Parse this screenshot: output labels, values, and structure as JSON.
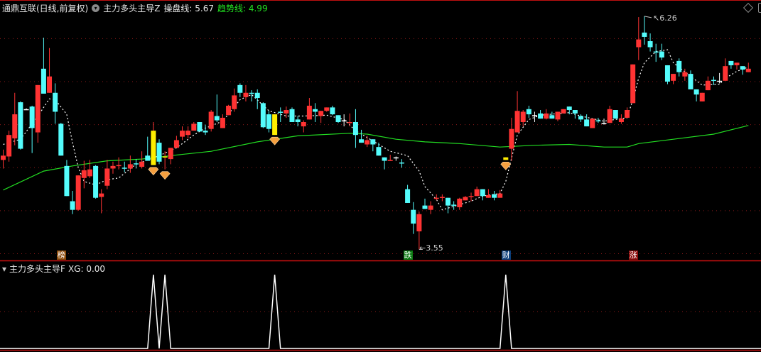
{
  "header": {
    "stock": "通鼎互联(日线,前复权)",
    "indicator": "主力多头主导Z",
    "line1_label": "操盘线: 5.67",
    "line2_label": "趋势线: 4.99"
  },
  "sub_header": {
    "indicator": "主力多头主导F",
    "value_label": "XG: 0.00"
  },
  "markers": [
    {
      "text": "榜",
      "index": 10,
      "color": "#8b4a0a"
    },
    {
      "text": "跌",
      "index": 70,
      "color": "#0b7a12"
    },
    {
      "text": "财",
      "index": 87,
      "color": "#0b3f7a"
    },
    {
      "text": "涨",
      "index": 109,
      "color": "#8b0c0c"
    }
  ],
  "colors": {
    "up": "#ff3333",
    "down": "#54fcfc",
    "flat": "#ffffff",
    "signal": "#ffee00",
    "trend": "#22dd22",
    "ma": "#ffffff",
    "grid": "#8b1a1a",
    "diamond": "#f5a040"
  },
  "chart_data": [
    {
      "type": "candlestick",
      "ylim": [
        3.43,
        6.3
      ],
      "grid": true,
      "gridlines": [
        3.5,
        4.0,
        4.5,
        5.0,
        5.5,
        6.0
      ],
      "high_label": {
        "index": 111,
        "value": "6.26"
      },
      "low_label": {
        "index": 72,
        "value": "3.55"
      },
      "signal_indices": [
        26,
        28,
        47,
        87
      ],
      "ohlc": [
        [
          4.59,
          4.71,
          4.49,
          4.64
        ],
        [
          4.63,
          4.93,
          4.57,
          4.88
        ],
        [
          4.84,
          5.37,
          4.76,
          5.12
        ],
        [
          5.26,
          5.27,
          4.71,
          4.72
        ],
        [
          5.18,
          5.19,
          5.17,
          5.18
        ],
        [
          5.21,
          5.22,
          4.67,
          4.96
        ],
        [
          4.91,
          5.46,
          4.79,
          5.46
        ],
        [
          5.65,
          6.01,
          5.36,
          5.36
        ],
        [
          5.37,
          5.89,
          5.37,
          5.56
        ],
        [
          5.37,
          5.48,
          5.01,
          5.15
        ],
        [
          5.01,
          5.02,
          4.64,
          4.64
        ],
        [
          4.52,
          4.59,
          4.17,
          4.17
        ],
        [
          4.11,
          4.23,
          3.96,
          4.01
        ],
        [
          4.01,
          4.41,
          4.0,
          4.41
        ],
        [
          4.38,
          4.58,
          4.26,
          4.47
        ],
        [
          4.4,
          4.59,
          4.38,
          4.48
        ],
        [
          4.52,
          4.53,
          4.14,
          4.15
        ],
        [
          4.16,
          4.25,
          3.97,
          4.2
        ],
        [
          4.29,
          4.59,
          4.25,
          4.49
        ],
        [
          4.49,
          4.57,
          4.43,
          4.52
        ],
        [
          4.52,
          4.62,
          4.48,
          4.53
        ],
        [
          4.5,
          4.57,
          4.45,
          4.49
        ],
        [
          4.49,
          4.64,
          4.44,
          4.54
        ],
        [
          4.55,
          4.6,
          4.49,
          4.54
        ],
        [
          4.51,
          4.69,
          4.49,
          4.57
        ],
        [
          4.64,
          4.86,
          4.58,
          4.58
        ],
        [
          4.53,
          5.03,
          4.53,
          4.93
        ],
        [
          4.79,
          4.83,
          4.54,
          4.57
        ],
        [
          4.62,
          4.69,
          4.48,
          4.63
        ],
        [
          4.6,
          4.73,
          4.54,
          4.73
        ],
        [
          4.73,
          4.87,
          4.73,
          4.82
        ],
        [
          4.86,
          4.98,
          4.82,
          4.93
        ],
        [
          4.88,
          4.98,
          4.84,
          4.93
        ],
        [
          4.93,
          5.03,
          4.93,
          5.01
        ],
        [
          5.03,
          5.03,
          4.92,
          4.92
        ],
        [
          4.93,
          5.0,
          4.88,
          4.91
        ],
        [
          4.95,
          5.17,
          4.92,
          5.15
        ],
        [
          5.1,
          5.35,
          5.03,
          5.05
        ],
        [
          4.96,
          5.12,
          4.96,
          5.08
        ],
        [
          5.11,
          5.23,
          5.11,
          5.22
        ],
        [
          5.18,
          5.42,
          5.15,
          5.34
        ],
        [
          5.46,
          5.48,
          5.32,
          5.37
        ],
        [
          5.32,
          5.46,
          5.27,
          5.37
        ],
        [
          5.37,
          5.4,
          5.27,
          5.36
        ],
        [
          5.37,
          5.41,
          5.18,
          5.31
        ],
        [
          5.25,
          5.26,
          4.96,
          4.97
        ],
        [
          5.12,
          5.16,
          4.91,
          4.95
        ],
        [
          4.88,
          5.12,
          4.88,
          5.12
        ],
        [
          5.15,
          5.2,
          5.03,
          5.14
        ],
        [
          5.13,
          5.21,
          5.08,
          5.17
        ],
        [
          5.18,
          5.2,
          5.03,
          5.03
        ],
        [
          5.06,
          5.1,
          4.98,
          5.03
        ],
        [
          4.98,
          5.05,
          4.91,
          5.03
        ],
        [
          5.06,
          5.31,
          5.06,
          5.22
        ],
        [
          5.18,
          5.25,
          5.03,
          5.15
        ],
        [
          5.1,
          5.16,
          5.02,
          5.16
        ],
        [
          5.16,
          5.2,
          5.15,
          5.2
        ],
        [
          5.2,
          5.22,
          5.11,
          5.12
        ],
        [
          5.11,
          5.11,
          5.02,
          5.03
        ],
        [
          5.05,
          5.12,
          4.98,
          5.05
        ],
        [
          5.02,
          5.13,
          4.98,
          5.03
        ],
        [
          5.03,
          5.18,
          4.73,
          4.88
        ],
        [
          4.83,
          4.94,
          4.79,
          4.79
        ],
        [
          4.77,
          4.87,
          4.74,
          4.82
        ],
        [
          4.83,
          4.83,
          4.69,
          4.77
        ],
        [
          4.74,
          4.79,
          4.64,
          4.64
        ],
        [
          4.62,
          4.62,
          4.48,
          4.58
        ],
        [
          4.58,
          4.65,
          4.58,
          4.59
        ],
        [
          4.62,
          4.63,
          4.58,
          4.62
        ],
        [
          4.56,
          4.6,
          4.5,
          4.55
        ],
        [
          4.25,
          4.3,
          4.09,
          4.09
        ],
        [
          4.01,
          4.1,
          3.73,
          3.85
        ],
        [
          3.76,
          3.99,
          3.55,
          3.96
        ],
        [
          4.06,
          4.14,
          4.02,
          4.02
        ],
        [
          4.01,
          4.11,
          3.96,
          4.06
        ],
        [
          4.14,
          4.19,
          4.12,
          4.15
        ],
        [
          4.15,
          4.19,
          4.11,
          4.16
        ],
        [
          4.15,
          4.15,
          3.97,
          4.06
        ],
        [
          4.07,
          4.11,
          4.01,
          4.06
        ],
        [
          4.04,
          4.15,
          4.01,
          4.14
        ],
        [
          4.12,
          4.17,
          4.12,
          4.16
        ],
        [
          4.16,
          4.21,
          4.11,
          4.17
        ],
        [
          4.17,
          4.28,
          4.17,
          4.25
        ],
        [
          4.25,
          4.25,
          4.12,
          4.17
        ],
        [
          4.15,
          4.25,
          4.15,
          4.18
        ],
        [
          4.19,
          4.23,
          4.12,
          4.15
        ],
        [
          4.15,
          4.24,
          4.15,
          4.2
        ],
        [
          4.59,
          4.62,
          4.59,
          4.62
        ],
        [
          4.72,
          5.08,
          4.58,
          4.95
        ],
        [
          4.91,
          5.39,
          4.91,
          5.16
        ],
        [
          5.03,
          5.17,
          4.98,
          5.15
        ],
        [
          5.18,
          5.22,
          5.08,
          5.12
        ],
        [
          5.11,
          5.15,
          5.03,
          5.11
        ],
        [
          5.13,
          5.17,
          5.07,
          5.07
        ],
        [
          5.07,
          5.18,
          5.06,
          5.13
        ],
        [
          5.11,
          5.15,
          5.07,
          5.07
        ],
        [
          5.06,
          5.15,
          5.04,
          5.15
        ],
        [
          5.13,
          5.18,
          5.13,
          5.18
        ],
        [
          5.21,
          5.21,
          5.12,
          5.17
        ],
        [
          5.17,
          5.17,
          5.07,
          5.13
        ],
        [
          5.1,
          5.12,
          5.03,
          5.06
        ],
        [
          5.06,
          5.12,
          4.98,
          4.98
        ],
        [
          4.96,
          5.07,
          4.96,
          5.07
        ],
        [
          5.05,
          5.08,
          5.02,
          5.04
        ],
        [
          5.02,
          5.07,
          5.0,
          5.02
        ],
        [
          5.02,
          5.22,
          5.02,
          5.18
        ],
        [
          5.17,
          5.17,
          5.07,
          5.07
        ],
        [
          5.03,
          5.12,
          5.01,
          5.07
        ],
        [
          5.08,
          5.2,
          5.08,
          5.17
        ],
        [
          5.25,
          5.7,
          5.25,
          5.7
        ],
        [
          5.9,
          6.25,
          5.75,
          5.99
        ],
        [
          6.07,
          6.26,
          5.93,
          6.02
        ],
        [
          5.97,
          6.06,
          5.85,
          5.9
        ],
        [
          5.85,
          5.94,
          5.73,
          5.84
        ],
        [
          5.85,
          5.94,
          5.75,
          5.78
        ],
        [
          5.69,
          5.69,
          5.47,
          5.5
        ],
        [
          5.51,
          5.59,
          5.47,
          5.59
        ],
        [
          5.74,
          5.77,
          5.56,
          5.61
        ],
        [
          5.56,
          5.65,
          5.51,
          5.61
        ],
        [
          5.59,
          5.63,
          5.41,
          5.41
        ],
        [
          5.41,
          5.41,
          5.27,
          5.35
        ],
        [
          5.27,
          5.37,
          5.27,
          5.37
        ],
        [
          5.4,
          5.56,
          5.4,
          5.51
        ],
        [
          5.52,
          5.56,
          5.46,
          5.51
        ],
        [
          5.51,
          5.6,
          5.48,
          5.51
        ],
        [
          5.51,
          5.77,
          5.51,
          5.68
        ],
        [
          5.74,
          5.74,
          5.65,
          5.69
        ],
        [
          5.69,
          5.72,
          5.64,
          5.72
        ],
        [
          5.68,
          5.68,
          5.58,
          5.64
        ],
        [
          5.61,
          5.72,
          5.61,
          5.65
        ]
      ],
      "series": [
        {
          "name": "操盘线",
          "style": "dotted",
          "points": [
            [
              0,
              4.77
            ],
            [
              3,
              4.83
            ],
            [
              6,
              5.1
            ],
            [
              8,
              5.3
            ],
            [
              9,
              5.29
            ],
            [
              11,
              5.12
            ],
            [
              12,
              4.79
            ],
            [
              13,
              4.5
            ],
            [
              14,
              4.34
            ],
            [
              16,
              4.3
            ],
            [
              18,
              4.36
            ],
            [
              20,
              4.38
            ],
            [
              23,
              4.54
            ],
            [
              27,
              4.64
            ],
            [
              30,
              4.73
            ],
            [
              33,
              4.88
            ],
            [
              35,
              4.96
            ],
            [
              38,
              5.04
            ],
            [
              41,
              5.29
            ],
            [
              43,
              5.35
            ],
            [
              46,
              5.16
            ],
            [
              49,
              5.1
            ],
            [
              52,
              5.1
            ],
            [
              56,
              5.11
            ],
            [
              59,
              5.06
            ],
            [
              61,
              4.93
            ],
            [
              63,
              4.85
            ],
            [
              67,
              4.69
            ],
            [
              70,
              4.64
            ],
            [
              72,
              4.46
            ],
            [
              73,
              4.28
            ],
            [
              75,
              4.13
            ],
            [
              76,
              4.01
            ],
            [
              78,
              4.05
            ],
            [
              81,
              4.11
            ],
            [
              83,
              4.17
            ],
            [
              86,
              4.2
            ],
            [
              87,
              4.34
            ],
            [
              88,
              4.61
            ],
            [
              89,
              4.88
            ],
            [
              91,
              5.06
            ],
            [
              93,
              5.11
            ],
            [
              98,
              5.14
            ],
            [
              100,
              5.1
            ],
            [
              104,
              5.04
            ],
            [
              108,
              5.08
            ],
            [
              109,
              5.29
            ],
            [
              110,
              5.54
            ],
            [
              111,
              5.72
            ],
            [
              113,
              5.85
            ],
            [
              115,
              5.87
            ],
            [
              116,
              5.72
            ],
            [
              119,
              5.56
            ],
            [
              121,
              5.46
            ],
            [
              124,
              5.47
            ],
            [
              125,
              5.54
            ],
            [
              127,
              5.62
            ],
            [
              129,
              5.67
            ]
          ]
        },
        {
          "name": "趋势线",
          "style": "solid",
          "points": [
            [
              0,
              4.24
            ],
            [
              7,
              4.46
            ],
            [
              12,
              4.52
            ],
            [
              18,
              4.58
            ],
            [
              24,
              4.6
            ],
            [
              29,
              4.64
            ],
            [
              36,
              4.69
            ],
            [
              44,
              4.8
            ],
            [
              51,
              4.87
            ],
            [
              60,
              4.9
            ],
            [
              63,
              4.89
            ],
            [
              68,
              4.83
            ],
            [
              73,
              4.8
            ],
            [
              79,
              4.78
            ],
            [
              86,
              4.74
            ],
            [
              92,
              4.76
            ],
            [
              98,
              4.77
            ],
            [
              104,
              4.74
            ],
            [
              108,
              4.74
            ],
            [
              110,
              4.78
            ],
            [
              116,
              4.83
            ],
            [
              123,
              4.89
            ],
            [
              129,
              4.99
            ]
          ]
        }
      ]
    },
    {
      "type": "line",
      "name": "XG",
      "ylim": [
        0,
        1
      ],
      "signal_indices": [
        26,
        28,
        47,
        87
      ]
    }
  ]
}
